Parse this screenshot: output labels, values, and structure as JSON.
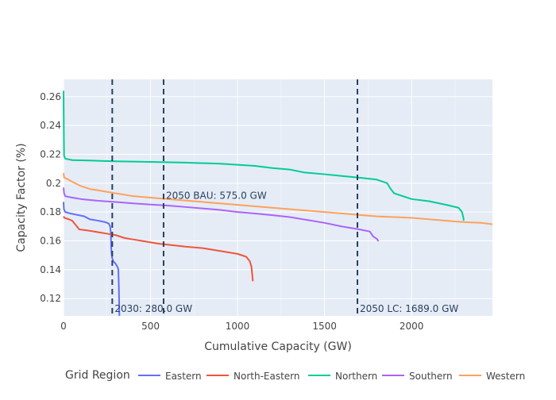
{
  "chart_data": {
    "type": "line",
    "title": "",
    "xlabel": "Cumulative Capacity (GW)",
    "ylabel": "Capacity Factor (%)",
    "xlim": [
      0,
      2465
    ],
    "ylim": [
      0.108,
      0.272
    ],
    "x_ticks": [
      0,
      500,
      1000,
      1500,
      2000
    ],
    "x_tick_labels": [
      "0",
      "500",
      "1000",
      "1500",
      "2000"
    ],
    "y_ticks": [
      0.12,
      0.14,
      0.16,
      0.18,
      0.2,
      0.22,
      0.24,
      0.26
    ],
    "y_tick_labels": [
      "0.12",
      "0.14",
      "0.16",
      "0.18",
      "0.2",
      "0.22",
      "0.24",
      "0.26"
    ],
    "grid": true,
    "background_color": "#E5ECF6",
    "legend": {
      "title": "Grid Region",
      "placement": "bottom"
    },
    "series": [
      {
        "name": "Eastern",
        "color": "#636EFA",
        "points": [
          [
            0,
            0.187
          ],
          [
            2,
            0.182
          ],
          [
            10,
            0.18
          ],
          [
            40,
            0.179
          ],
          [
            80,
            0.178
          ],
          [
            120,
            0.177
          ],
          [
            150,
            0.175
          ],
          [
            200,
            0.174
          ],
          [
            240,
            0.173
          ],
          [
            260,
            0.172
          ],
          [
            268,
            0.17
          ],
          [
            272,
            0.165
          ],
          [
            274,
            0.155
          ],
          [
            277,
            0.15
          ],
          [
            280,
            0.148
          ],
          [
            285,
            0.146
          ],
          [
            300,
            0.144
          ],
          [
            310,
            0.142
          ],
          [
            315,
            0.14
          ],
          [
            318,
            0.128
          ],
          [
            320,
            0.115
          ],
          [
            321,
            0.108
          ]
        ]
      },
      {
        "name": "North-Eastern",
        "color": "#EF553B",
        "points": [
          [
            0,
            0.177
          ],
          [
            5,
            0.176
          ],
          [
            30,
            0.175
          ],
          [
            50,
            0.174
          ],
          [
            70,
            0.171
          ],
          [
            90,
            0.168
          ],
          [
            150,
            0.167
          ],
          [
            200,
            0.166
          ],
          [
            250,
            0.165
          ],
          [
            300,
            0.164
          ],
          [
            350,
            0.162
          ],
          [
            400,
            0.161
          ],
          [
            450,
            0.16
          ],
          [
            500,
            0.159
          ],
          [
            550,
            0.158
          ],
          [
            700,
            0.156
          ],
          [
            800,
            0.155
          ],
          [
            900,
            0.153
          ],
          [
            1000,
            0.151
          ],
          [
            1050,
            0.149
          ],
          [
            1070,
            0.146
          ],
          [
            1080,
            0.142
          ],
          [
            1085,
            0.136
          ],
          [
            1088,
            0.132
          ]
        ]
      },
      {
        "name": "Northern",
        "color": "#00CC96",
        "points": [
          [
            0,
            0.264
          ],
          [
            2,
            0.23
          ],
          [
            3,
            0.219
          ],
          [
            10,
            0.217
          ],
          [
            50,
            0.216
          ],
          [
            150,
            0.2157
          ],
          [
            300,
            0.2152
          ],
          [
            500,
            0.2148
          ],
          [
            700,
            0.2143
          ],
          [
            900,
            0.2135
          ],
          [
            1100,
            0.212
          ],
          [
            1200,
            0.2105
          ],
          [
            1300,
            0.2095
          ],
          [
            1380,
            0.2075
          ],
          [
            1500,
            0.2062
          ],
          [
            1600,
            0.205
          ],
          [
            1700,
            0.2038
          ],
          [
            1800,
            0.2025
          ],
          [
            1860,
            0.2
          ],
          [
            1880,
            0.196
          ],
          [
            1900,
            0.193
          ],
          [
            1950,
            0.191
          ],
          [
            2000,
            0.189
          ],
          [
            2100,
            0.1875
          ],
          [
            2200,
            0.185
          ],
          [
            2270,
            0.183
          ],
          [
            2290,
            0.18
          ],
          [
            2298,
            0.176
          ],
          [
            2300,
            0.174
          ]
        ]
      },
      {
        "name": "Southern",
        "color": "#AB63FA",
        "points": [
          [
            0,
            0.197
          ],
          [
            3,
            0.193
          ],
          [
            10,
            0.191
          ],
          [
            50,
            0.19
          ],
          [
            100,
            0.189
          ],
          [
            200,
            0.1878
          ],
          [
            300,
            0.187
          ],
          [
            400,
            0.186
          ],
          [
            500,
            0.1852
          ],
          [
            600,
            0.1845
          ],
          [
            700,
            0.1835
          ],
          [
            800,
            0.1825
          ],
          [
            900,
            0.1815
          ],
          [
            1000,
            0.18
          ],
          [
            1100,
            0.179
          ],
          [
            1200,
            0.1778
          ],
          [
            1300,
            0.1765
          ],
          [
            1400,
            0.1745
          ],
          [
            1500,
            0.1725
          ],
          [
            1600,
            0.17
          ],
          [
            1700,
            0.168
          ],
          [
            1760,
            0.1665
          ],
          [
            1780,
            0.163
          ],
          [
            1800,
            0.1615
          ],
          [
            1810,
            0.1598
          ]
        ]
      },
      {
        "name": "Western",
        "color": "#FFA15A",
        "points": [
          [
            0,
            0.207
          ],
          [
            3,
            0.204
          ],
          [
            20,
            0.203
          ],
          [
            50,
            0.201
          ],
          [
            100,
            0.198
          ],
          [
            150,
            0.196
          ],
          [
            200,
            0.195
          ],
          [
            300,
            0.193
          ],
          [
            400,
            0.191
          ],
          [
            500,
            0.19
          ],
          [
            600,
            0.189
          ],
          [
            700,
            0.188
          ],
          [
            800,
            0.187
          ],
          [
            1000,
            0.185
          ],
          [
            1200,
            0.183
          ],
          [
            1400,
            0.181
          ],
          [
            1600,
            0.179
          ],
          [
            1800,
            0.177
          ],
          [
            2000,
            0.176
          ],
          [
            2200,
            0.174
          ],
          [
            2300,
            0.173
          ],
          [
            2400,
            0.1725
          ],
          [
            2465,
            0.1715
          ]
        ]
      }
    ],
    "vlines": [
      {
        "x": 280,
        "color": "#2a3f5f",
        "label": "2030: 280.0 GW",
        "label_position": "bottom"
      },
      {
        "x": 575,
        "color": "#2a3f5f",
        "label": "2050 BAU: 575.0 GW",
        "label_position": "middle"
      },
      {
        "x": 1689,
        "color": "#2a3f5f",
        "label": "2050 LC: 1689.0 GW",
        "label_position": "bottom"
      }
    ]
  }
}
